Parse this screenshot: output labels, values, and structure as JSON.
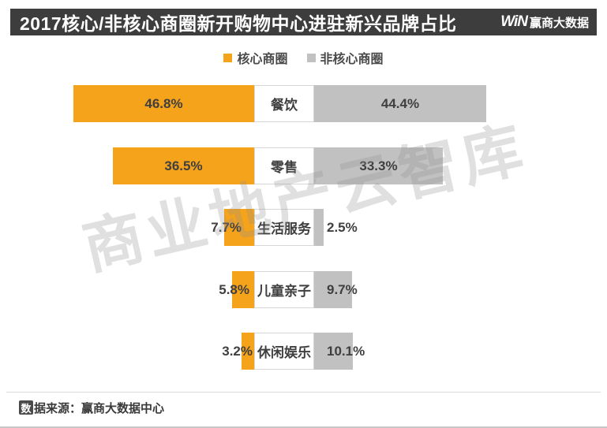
{
  "header": {
    "title": "2017核心/非核心商圈新开购物中心进驻新兴品牌占比",
    "logo_win": "WiN",
    "logo_text": "赢商大数据"
  },
  "watermark": "商业地产云智库",
  "source": {
    "icon_char": "数",
    "text": "据来源：赢商大数据中心"
  },
  "chart_data": {
    "type": "bar",
    "orientation": "horizontal-diverging",
    "title": "2017核心/非核心商圈新开购物中心进驻新兴品牌占比",
    "categories": [
      "餐饮",
      "零售",
      "生活服务",
      "儿童亲子",
      "休闲娱乐"
    ],
    "series": [
      {
        "name": "核心商圈",
        "color": "#F5A31B",
        "values": [
          46.8,
          36.5,
          7.7,
          5.8,
          3.2
        ]
      },
      {
        "name": "非核心商圈",
        "color": "#C1C1C1",
        "values": [
          44.4,
          33.3,
          2.5,
          9.7,
          10.1
        ]
      }
    ],
    "value_suffix": "%",
    "legend_position": "top",
    "xlim": [
      0,
      50
    ]
  }
}
